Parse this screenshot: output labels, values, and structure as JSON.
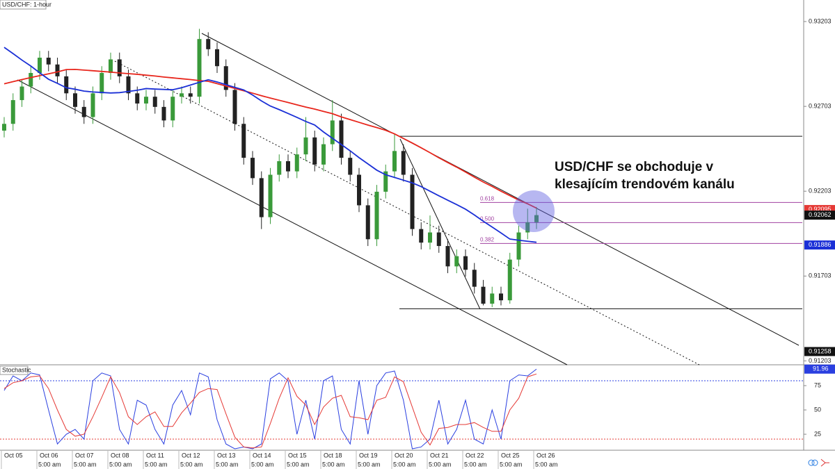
{
  "chart_data": [
    {
      "type": "candlestick",
      "title": "USD/CHF: 1-hour",
      "open": [
        0.9256,
        0.926,
        0.9274,
        0.9282,
        0.929,
        0.9299,
        0.9295,
        0.9288,
        0.9278,
        0.927,
        0.9264,
        0.9278,
        0.929,
        0.9298,
        0.9288,
        0.9278,
        0.9272,
        0.9276,
        0.927,
        0.9262,
        0.9276,
        0.9278,
        0.9276,
        0.931,
        0.9304,
        0.9294,
        0.928,
        0.926,
        0.924,
        0.9228,
        0.9205,
        0.923,
        0.9238,
        0.9232,
        0.9242,
        0.9252,
        0.9236,
        0.9248,
        0.9262,
        0.924,
        0.923,
        0.9212,
        0.9192,
        0.922,
        0.9232,
        0.9244,
        0.923,
        0.9198,
        0.919,
        0.9196,
        0.9188,
        0.9176,
        0.9182,
        0.9174,
        0.9164,
        0.9154,
        0.916,
        0.9156,
        0.918,
        0.9196,
        0.9202
      ],
      "high": [
        0.9264,
        0.9278,
        0.9286,
        0.9294,
        0.9303,
        0.9303,
        0.9299,
        0.9292,
        0.9282,
        0.9274,
        0.9282,
        0.9294,
        0.9302,
        0.9302,
        0.9292,
        0.9282,
        0.928,
        0.928,
        0.9274,
        0.928,
        0.9282,
        0.9282,
        0.9316,
        0.9314,
        0.9308,
        0.9298,
        0.9284,
        0.9264,
        0.9244,
        0.9232,
        0.9234,
        0.9242,
        0.9242,
        0.9246,
        0.9264,
        0.9256,
        0.9252,
        0.9274,
        0.9266,
        0.9244,
        0.9234,
        0.9216,
        0.9224,
        0.9236,
        0.9254,
        0.9248,
        0.9234,
        0.9202,
        0.9206,
        0.92,
        0.9192,
        0.9186,
        0.9186,
        0.9178,
        0.9168,
        0.9164,
        0.9164,
        0.9184,
        0.92,
        0.921,
        0.9211
      ],
      "low": [
        0.9252,
        0.9256,
        0.927,
        0.9278,
        0.9286,
        0.9291,
        0.9284,
        0.9274,
        0.9266,
        0.926,
        0.926,
        0.9274,
        0.9286,
        0.9284,
        0.9274,
        0.9268,
        0.9268,
        0.9266,
        0.9258,
        0.9258,
        0.9272,
        0.9272,
        0.9272,
        0.93,
        0.929,
        0.9276,
        0.9256,
        0.9236,
        0.9224,
        0.9198,
        0.9201,
        0.9226,
        0.9228,
        0.9228,
        0.9238,
        0.9232,
        0.9232,
        0.9244,
        0.9236,
        0.9226,
        0.9208,
        0.9188,
        0.9188,
        0.9216,
        0.9228,
        0.9226,
        0.9194,
        0.9186,
        0.9186,
        0.9184,
        0.9172,
        0.9172,
        0.917,
        0.916,
        0.9153,
        0.9152,
        0.9153,
        0.9154,
        0.9176,
        0.9192,
        0.9198
      ],
      "close": [
        0.926,
        0.9274,
        0.9282,
        0.929,
        0.9299,
        0.9295,
        0.9288,
        0.9278,
        0.927,
        0.9264,
        0.9278,
        0.929,
        0.9298,
        0.9288,
        0.9278,
        0.9272,
        0.9276,
        0.927,
        0.9262,
        0.9276,
        0.9278,
        0.9276,
        0.931,
        0.9304,
        0.9294,
        0.928,
        0.926,
        0.924,
        0.9228,
        0.9205,
        0.923,
        0.9238,
        0.9232,
        0.9242,
        0.9252,
        0.9236,
        0.9248,
        0.9262,
        0.924,
        0.923,
        0.9212,
        0.9192,
        0.922,
        0.9232,
        0.9244,
        0.923,
        0.9198,
        0.919,
        0.9196,
        0.9188,
        0.9176,
        0.9182,
        0.9174,
        0.9164,
        0.9154,
        0.916,
        0.9156,
        0.918,
        0.9196,
        0.9202,
        0.92062
      ],
      "up_color": "#3a9a3a",
      "down_color": "#222222",
      "series": [
        {
          "color": "#e8261c",
          "values": [
            0.92836,
            0.92849,
            0.92861,
            0.92873,
            0.92884,
            0.92895,
            0.92906,
            0.9292,
            0.92921,
            0.92917,
            0.92913,
            0.92909,
            0.92905,
            0.929,
            0.92896,
            0.92892,
            0.92887,
            0.92882,
            0.92876,
            0.92871,
            0.92866,
            0.92861,
            0.92855,
            0.92851,
            0.92837,
            0.92823,
            0.92809,
            0.92795,
            0.92781,
            0.92766,
            0.92752,
            0.92739,
            0.92726,
            0.92712,
            0.92699,
            0.92687,
            0.92673,
            0.9266,
            0.92641,
            0.92625,
            0.92609,
            0.92593,
            0.92578,
            0.92562,
            0.92541,
            0.92514,
            0.92487,
            0.92459,
            0.9243,
            0.924,
            0.92372,
            0.92345,
            0.92316,
            0.92286,
            0.92257,
            0.92231,
            0.92203,
            0.92177,
            0.92151,
            0.92129,
            0.92103
          ]
        },
        {
          "color": "#1a2fd6",
          "values": [
            0.93051,
            0.93014,
            0.92976,
            0.92941,
            0.92901,
            0.92863,
            0.92839,
            0.92813,
            0.92804,
            0.92793,
            0.92788,
            0.92785,
            0.92782,
            0.92784,
            0.92791,
            0.92798,
            0.92808,
            0.92805,
            0.92803,
            0.92801,
            0.92813,
            0.92829,
            0.92845,
            0.9286,
            0.92847,
            0.92831,
            0.92815,
            0.928,
            0.9277,
            0.92735,
            0.92705,
            0.92684,
            0.92661,
            0.92638,
            0.92614,
            0.92593,
            0.92552,
            0.92515,
            0.92478,
            0.92441,
            0.92401,
            0.92364,
            0.92327,
            0.923,
            0.92284,
            0.92268,
            0.92252,
            0.9223,
            0.92203,
            0.92176,
            0.9215,
            0.92124,
            0.92097,
            0.92063,
            0.92026,
            0.91992,
            0.91957,
            0.91921,
            0.91914,
            0.91908,
            0.91902
          ]
        }
      ],
      "ylim": [
        0.9118,
        0.9333
      ],
      "yticks": [
        0.93203,
        0.92703,
        0.92203,
        0.91703,
        0.91203
      ],
      "levels": [
        0.92527,
        0.9151
      ],
      "fib_levels": [
        {
          "label": "0.618",
          "value": 0.92137
        },
        {
          "label": "0.500",
          "value": 0.92018
        },
        {
          "label": "0.382",
          "value": 0.91895
        }
      ],
      "fib_color": "#a040a0",
      "price_markers": [
        {
          "value": 0.92095,
          "color": "#e53935"
        },
        {
          "value": 0.92062,
          "color": "#111111"
        },
        {
          "value": 0.91886,
          "color": "#1a2fd6"
        },
        {
          "value": 0.91258,
          "color": "#111111"
        }
      ],
      "annotation": [
        "USD/CHF se obchoduje v",
        "klesajícím trendovém kanálu"
      ],
      "date_labels": [
        "Oct 05",
        "Oct 06",
        "Oct 07",
        "Oct 08",
        "Oct 11",
        "Oct 12",
        "Oct 13",
        "Oct 14",
        "Oct 15",
        "Oct 18",
        "Oct 19",
        "Oct 20",
        "Oct 21",
        "Oct 22",
        "Oct 25",
        "Oct 26"
      ],
      "time_labels": [
        "5:00 am",
        "5:00 am",
        "5:00 am",
        "5:00 am",
        "5:00 am",
        "5:00 am",
        "5:00 am",
        "5:00 am",
        "5:00 am",
        "5:00 am",
        "5:00 am",
        "5:00 am",
        "5:00 am",
        "5:00 am",
        "5:00 am"
      ]
    },
    {
      "type": "line",
      "title": "Stochastic",
      "series": [
        {
          "color": "#2a3fe0",
          "values": [
            70,
            85,
            80,
            88,
            86,
            50,
            15,
            25,
            30,
            20,
            80,
            88,
            85,
            30,
            15,
            60,
            55,
            30,
            15,
            55,
            70,
            45,
            88,
            84,
            40,
            15,
            10,
            12,
            10,
            15,
            82,
            88,
            80,
            25,
            60,
            20,
            80,
            85,
            30,
            15,
            80,
            25,
            75,
            88,
            90,
            60,
            10,
            12,
            20,
            60,
            15,
            30,
            60,
            20,
            15,
            50,
            20,
            80,
            86,
            85,
            91.96
          ]
        },
        {
          "color": "#e53935",
          "values": [
            72,
            78,
            80,
            84,
            85,
            72,
            50,
            30,
            23,
            25,
            43,
            63,
            84,
            68,
            43,
            35,
            43,
            48,
            33,
            33,
            47,
            57,
            68,
            72,
            71,
            46,
            22,
            12,
            11,
            12,
            36,
            62,
            83,
            64,
            55,
            35,
            53,
            62,
            65,
            43,
            42,
            40,
            60,
            63,
            84,
            79,
            53,
            27,
            14,
            31,
            32,
            35,
            35,
            37,
            32,
            28,
            28,
            50,
            62,
            84,
            87
          ]
        }
      ],
      "ylim": [
        8,
        95
      ],
      "yticks": [
        25,
        50,
        75
      ],
      "levels": [
        {
          "value": 80,
          "color": "#2a3fe0"
        },
        {
          "value": 20,
          "color": "#e53935"
        }
      ]
    }
  ]
}
